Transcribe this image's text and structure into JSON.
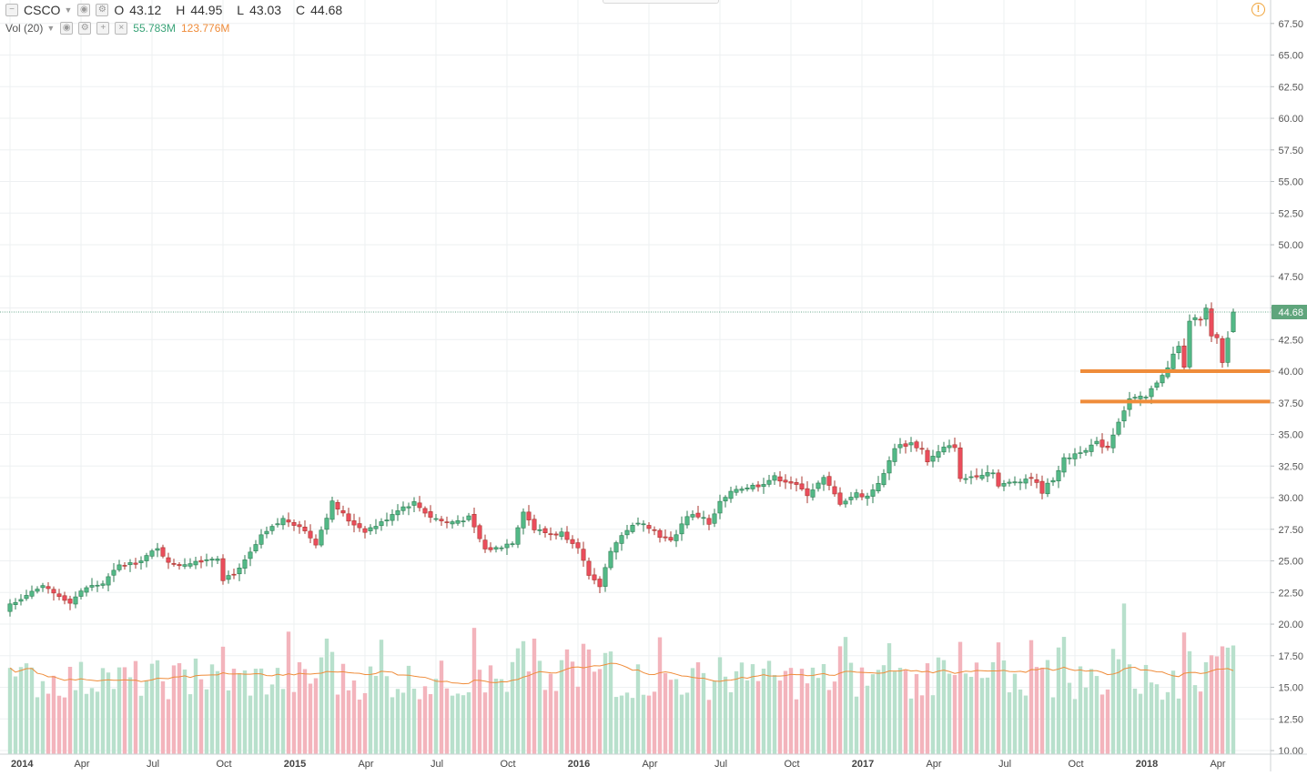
{
  "legend": {
    "symbol": "CSCO",
    "open_label": "O",
    "open": "43.12",
    "high_label": "H",
    "high": "44.95",
    "low_label": "L",
    "low": "43.03",
    "close_label": "C",
    "close": "44.68"
  },
  "volume_legend": {
    "label": "Vol (20)",
    "value1": "55.783M",
    "value2": "123.776M"
  },
  "colors": {
    "up_candle": "#53b987",
    "up_border": "#2e7d53",
    "down_candle": "#eb4d5c",
    "down_border": "#a8372f",
    "up_volume": "#b8e0cc",
    "down_volume": "#f3b4bc",
    "volume_ma": "#ef8c3a",
    "support_line": "#ef8c3a",
    "last_price_badge": "#5fa57c",
    "grid": "#eef0f2",
    "axis_text": "#555555"
  },
  "chart_data": {
    "type": "candlestick",
    "symbol": "CSCO",
    "interval": "weekly",
    "price_axis": {
      "ticks": [
        "10.00",
        "12.50",
        "15.00",
        "17.50",
        "20.00",
        "22.50",
        "25.00",
        "27.50",
        "30.00",
        "32.50",
        "35.00",
        "37.50",
        "40.00",
        "42.50",
        "45.00",
        "47.50",
        "50.00",
        "52.50",
        "55.00",
        "57.50",
        "60.00",
        "62.50",
        "65.00",
        "67.50"
      ],
      "range": [
        10,
        68.5
      ]
    },
    "time_axis": {
      "labels": [
        {
          "label": "2014",
          "week": 0,
          "bold": true
        },
        {
          "label": "Apr",
          "week": 13
        },
        {
          "label": "Jul",
          "week": 26
        },
        {
          "label": "Oct",
          "week": 39
        },
        {
          "label": "2015",
          "week": 52,
          "bold": true
        },
        {
          "label": "Apr",
          "week": 65
        },
        {
          "label": "Jul",
          "week": 78
        },
        {
          "label": "Oct",
          "week": 91
        },
        {
          "label": "2016",
          "week": 104,
          "bold": true
        },
        {
          "label": "Apr",
          "week": 117
        },
        {
          "label": "Jul",
          "week": 130
        },
        {
          "label": "Oct",
          "week": 143
        },
        {
          "label": "2017",
          "week": 156,
          "bold": true
        },
        {
          "label": "Apr",
          "week": 169
        },
        {
          "label": "Jul",
          "week": 182
        },
        {
          "label": "Oct",
          "week": 195
        },
        {
          "label": "2018",
          "week": 208,
          "bold": true
        },
        {
          "label": "Apr",
          "week": 221
        }
      ]
    },
    "close_anchors": [
      [
        0,
        21.6
      ],
      [
        4,
        22.6
      ],
      [
        6,
        22.9
      ],
      [
        8,
        22.4
      ],
      [
        11,
        21.8
      ],
      [
        14,
        22.9
      ],
      [
        17,
        23.2
      ],
      [
        20,
        24.6
      ],
      [
        23,
        24.9
      ],
      [
        27,
        25.9
      ],
      [
        30,
        24.6
      ],
      [
        34,
        25.0
      ],
      [
        38,
        25.3
      ],
      [
        39,
        23.6
      ],
      [
        42,
        24.3
      ],
      [
        46,
        26.9
      ],
      [
        50,
        28.3
      ],
      [
        53,
        27.8
      ],
      [
        56,
        26.4
      ],
      [
        59,
        29.6
      ],
      [
        62,
        28.2
      ],
      [
        65,
        27.4
      ],
      [
        68,
        28.0
      ],
      [
        71,
        29.1
      ],
      [
        74,
        29.6
      ],
      [
        77,
        28.5
      ],
      [
        80,
        28.0
      ],
      [
        84,
        28.4
      ],
      [
        87,
        25.9
      ],
      [
        89,
        26.0
      ],
      [
        92,
        26.5
      ],
      [
        94,
        29.0
      ],
      [
        96,
        27.5
      ],
      [
        99,
        27.1
      ],
      [
        101,
        27.2
      ],
      [
        104,
        26.2
      ],
      [
        106,
        23.7
      ],
      [
        108,
        23.0
      ],
      [
        110,
        25.9
      ],
      [
        113,
        27.5
      ],
      [
        116,
        28.1
      ],
      [
        119,
        27.0
      ],
      [
        121,
        26.5
      ],
      [
        124,
        28.6
      ],
      [
        127,
        28.5
      ],
      [
        128,
        27.8
      ],
      [
        130,
        29.6
      ],
      [
        133,
        30.7
      ],
      [
        137,
        31.0
      ],
      [
        140,
        31.6
      ],
      [
        143,
        31.2
      ],
      [
        146,
        30.3
      ],
      [
        149,
        31.5
      ],
      [
        152,
        29.6
      ],
      [
        155,
        30.3
      ],
      [
        157,
        30.1
      ],
      [
        160,
        31.8
      ],
      [
        162,
        34.0
      ],
      [
        165,
        34.3
      ],
      [
        167,
        33.8
      ],
      [
        168,
        32.9
      ],
      [
        171,
        33.9
      ],
      [
        173,
        34.1
      ],
      [
        174,
        31.4
      ],
      [
        177,
        31.8
      ],
      [
        180,
        32.1
      ],
      [
        181,
        30.9
      ],
      [
        184,
        31.3
      ],
      [
        187,
        31.6
      ],
      [
        189,
        30.5
      ],
      [
        191,
        31.5
      ],
      [
        193,
        33.0
      ],
      [
        196,
        33.7
      ],
      [
        199,
        34.3
      ],
      [
        201,
        34.0
      ],
      [
        203,
        36.1
      ],
      [
        205,
        37.8
      ],
      [
        208,
        37.9
      ],
      [
        211,
        39.8
      ],
      [
        212,
        40.2
      ],
      [
        213,
        41.3
      ],
      [
        214,
        41.9
      ],
      [
        215,
        40.4
      ],
      [
        216,
        43.8
      ],
      [
        217,
        44.4
      ],
      [
        218,
        44.2
      ],
      [
        219,
        44.9
      ],
      [
        220,
        42.7
      ],
      [
        221,
        42.5
      ],
      [
        222,
        40.6
      ],
      [
        223,
        42.6
      ],
      [
        224,
        44.68
      ]
    ],
    "ohlc_last": {
      "open": 43.12,
      "high": 44.95,
      "low": 43.03,
      "close": 44.68
    },
    "volume_axis_note": "volume histogram shares the lower band of the price pane",
    "volume_ma_period": 20,
    "horizontal_lines": [
      {
        "type": "support",
        "value": 40.0,
        "from_week": 196
      },
      {
        "type": "support",
        "value": 37.6,
        "from_week": 196
      }
    ],
    "last_price_label": "44.68",
    "last_price_line": 44.68
  }
}
